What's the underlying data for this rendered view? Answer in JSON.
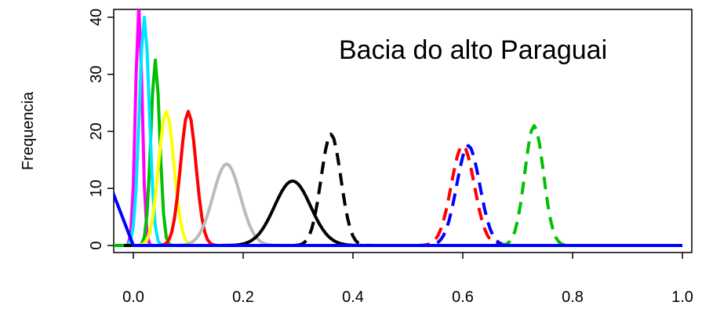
{
  "chart_data": {
    "type": "line",
    "title": "",
    "annotation": "Bacia do alto Paraguai",
    "xlabel": "",
    "ylabel": "Frequencia",
    "xlim": [
      -0.04,
      1.02
    ],
    "ylim": [
      -0.5,
      41
    ],
    "x_ticks": [
      0.0,
      0.2,
      0.4,
      0.6,
      0.8,
      1.0
    ],
    "x_tick_labels": [
      "0.0",
      "0.2",
      "0.4",
      "0.6",
      "0.8",
      "1.0"
    ],
    "y_ticks": [
      0,
      10,
      20,
      30,
      40
    ],
    "y_tick_labels": [
      "0",
      "10",
      "20",
      "30",
      "40"
    ],
    "grid": false,
    "legend": "none",
    "series": [
      {
        "color": "#ff00ff",
        "dash": "solid",
        "peak_x": 0.01,
        "peak_y": 42,
        "sd": 0.006
      },
      {
        "color": "#00c000",
        "dash": "solid",
        "peak_x": 0.04,
        "peak_y": 32.5,
        "sd": 0.008
      },
      {
        "color": "#00e5ff",
        "dash": "solid",
        "peak_x": 0.02,
        "peak_y": 40,
        "sd": 0.009
      },
      {
        "color": "#ffff00",
        "dash": "solid",
        "peak_x": 0.06,
        "peak_y": 23.5,
        "sd": 0.014
      },
      {
        "color": "#ff0000",
        "dash": "solid",
        "peak_x": 0.1,
        "peak_y": 23.5,
        "sd": 0.014
      },
      {
        "color": "#bbbbbb",
        "dash": "solid",
        "peak_x": 0.17,
        "peak_y": 14.3,
        "sd": 0.025
      },
      {
        "color": "#000000",
        "dash": "solid",
        "peak_x": 0.29,
        "peak_y": 11.3,
        "sd": 0.033
      },
      {
        "color": "#000000",
        "dash": "dashed",
        "peak_x": 0.36,
        "peak_y": 19.5,
        "sd": 0.018
      },
      {
        "color": "#ff0000",
        "dash": "dashed",
        "peak_x": 0.6,
        "peak_y": 17.5,
        "sd": 0.021
      },
      {
        "color": "#0000ff",
        "dash": "dashed",
        "peak_x": 0.61,
        "peak_y": 17.5,
        "sd": 0.021
      },
      {
        "color": "#00c000",
        "dash": "dashed",
        "peak_x": 0.73,
        "peak_y": 21,
        "sd": 0.017
      },
      {
        "color": "#0000ff",
        "dash": "solid",
        "peak_x": -0.04,
        "peak_y": 10,
        "sd": 0.0,
        "points": [
          [
            -0.04,
            10
          ],
          [
            0.0,
            0
          ]
        ]
      }
    ]
  }
}
